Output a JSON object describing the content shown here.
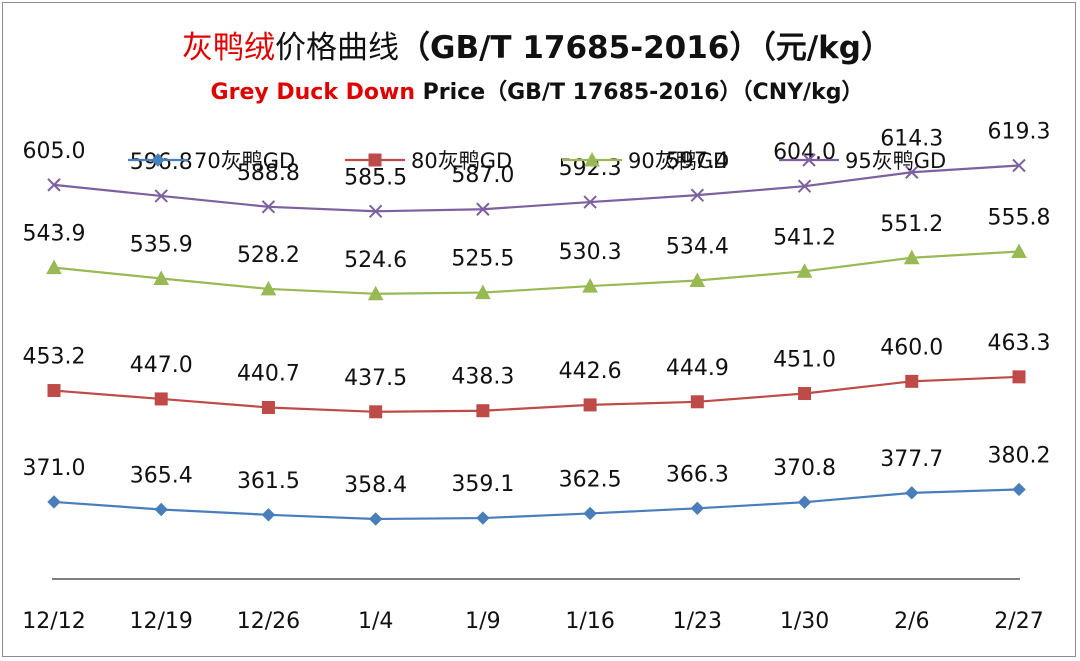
{
  "chart_data": {
    "type": "line",
    "title": {
      "highlight": "灰鸭绒",
      "rest_cn": "价格曲线",
      "spec": "（GB/T 17685-2016）（元/kg）"
    },
    "subtitle": {
      "highlight": "Grey Duck Down",
      "rest": " Price（GB/T 17685-2016）（CNY/kg）"
    },
    "categories": [
      "12/12",
      "12/19",
      "12/26",
      "1/4",
      "1/9",
      "1/16",
      "1/23",
      "1/30",
      "2/6",
      "2/27"
    ],
    "ylim": [
      300,
      650
    ],
    "legend_position": "top",
    "series": [
      {
        "name": "70灰鸭GD",
        "color": "#4a7ebb",
        "marker": "diamond",
        "values": [
          371.0,
          365.4,
          361.5,
          358.4,
          359.1,
          362.5,
          366.3,
          370.8,
          377.7,
          380.2
        ],
        "labels": [
          "371.0",
          "365.4",
          "361.5",
          "358.4",
          "359.1",
          "362.5",
          "366.3",
          "370.8",
          "377.7",
          "380.2"
        ]
      },
      {
        "name": "80灰鸭GD",
        "color": "#be4b48",
        "marker": "square",
        "values": [
          453.2,
          447.0,
          440.7,
          437.5,
          438.3,
          442.6,
          444.9,
          451.0,
          460.0,
          463.3
        ],
        "labels": [
          "453.2",
          "447.0",
          "440.7",
          "437.5",
          "438.3",
          "442.6",
          "444.9",
          "451.0",
          "460.0",
          "463.3"
        ]
      },
      {
        "name": "90灰鸭GD",
        "color": "#98b954",
        "marker": "triangle",
        "values": [
          543.9,
          535.9,
          528.2,
          524.6,
          525.5,
          530.3,
          534.4,
          541.2,
          551.2,
          555.8
        ],
        "labels": [
          "543.9",
          "535.9",
          "528.2",
          "524.6",
          "525.5",
          "530.3",
          "534.4",
          "541.2",
          "551.2",
          "555.8"
        ]
      },
      {
        "name": "95灰鸭GD",
        "color": "#7d60a0",
        "marker": "x",
        "values": [
          605.0,
          596.8,
          588.8,
          585.5,
          587.0,
          592.3,
          597.4,
          604.0,
          614.3,
          619.3
        ],
        "labels": [
          "605.0",
          "596.8",
          "588.8",
          "585.5",
          "587.0",
          "592.3",
          "597.4",
          "604.0",
          "614.3",
          "619.3"
        ]
      }
    ]
  }
}
